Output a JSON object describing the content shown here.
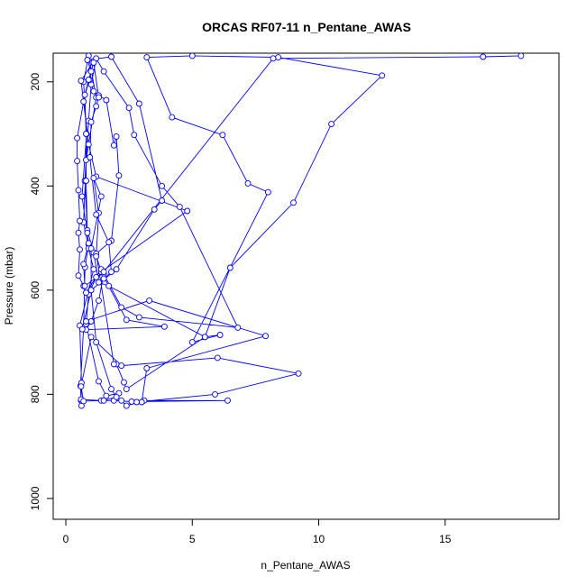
{
  "chart_data": {
    "type": "line",
    "title": "ORCAS RF07-11 n_Pentane_AWAS",
    "xlabel": "n_Pentane_AWAS",
    "ylabel": "Pressure (mbar)",
    "xlim": [
      -0.5,
      19.5
    ],
    "ylim": [
      1040,
      145
    ],
    "y_inverted": true,
    "x_ticks": [
      0,
      5,
      10,
      15
    ],
    "y_ticks": [
      200,
      400,
      600,
      800,
      1000
    ],
    "grid": false,
    "legend": "none",
    "color": "#0000ff",
    "marker": "open-circle",
    "series": [
      {
        "points": [
          [
            0.62,
            822
          ],
          [
            0.6,
            812
          ],
          [
            0.58,
            784
          ],
          [
            0.7,
            672
          ],
          [
            0.76,
            556
          ],
          [
            0.9,
            512
          ],
          [
            0.64,
            420
          ],
          [
            0.82,
            300
          ],
          [
            0.7,
            200
          ],
          [
            0.9,
            150
          ],
          [
            1.2,
            230
          ],
          [
            0.8,
            350
          ],
          [
            0.7,
            470
          ],
          [
            0.9,
            520
          ],
          [
            1.1,
            560
          ],
          [
            0.55,
            668
          ],
          [
            0.62,
            778
          ],
          [
            0.6,
            810
          ],
          [
            1.4,
            812
          ],
          [
            2.2,
            812
          ],
          [
            2.4,
            822
          ],
          [
            3.1,
            812
          ],
          [
            6.4,
            812
          ],
          [
            2.6,
            814
          ],
          [
            1.9,
            812
          ],
          [
            2.1,
            798
          ],
          [
            1.6,
            803
          ],
          [
            1.3,
            775
          ],
          [
            0.8,
            665
          ],
          [
            0.9,
            608
          ],
          [
            1.2,
            575
          ],
          [
            1.5,
            568
          ],
          [
            1.3,
            620
          ],
          [
            1.0,
            660
          ],
          [
            0.8,
            676
          ],
          [
            3.9,
            670
          ],
          [
            2.4,
            657
          ],
          [
            1.4,
            565
          ],
          [
            4.8,
            448
          ],
          [
            1.2,
            382
          ],
          [
            0.9,
            320
          ],
          [
            0.6,
            198
          ],
          [
            1.1,
            160
          ],
          [
            0.7,
            238
          ],
          [
            0.45,
            308
          ],
          [
            0.45,
            352
          ],
          [
            0.5,
            408
          ],
          [
            0.55,
            467
          ],
          [
            0.5,
            490
          ],
          [
            0.55,
            522
          ],
          [
            0.5,
            572
          ],
          [
            0.7,
            592
          ],
          [
            0.8,
            605
          ],
          [
            1.4,
            560
          ],
          [
            2.2,
            633
          ],
          [
            2.9,
            652
          ],
          [
            6.8,
            672
          ],
          [
            4.5,
            440
          ],
          [
            3.8,
            400
          ],
          [
            2.7,
            302
          ],
          [
            2.5,
            250
          ],
          [
            1.5,
            180
          ],
          [
            1.2,
            155
          ],
          [
            1.0,
            205
          ],
          [
            0.9,
            275
          ],
          [
            0.75,
            390
          ],
          [
            0.85,
            485
          ],
          [
            1.1,
            528
          ],
          [
            1.3,
            585
          ],
          [
            1.7,
            592
          ],
          [
            5.5,
            690
          ],
          [
            6.1,
            686
          ],
          [
            5.0,
            700
          ],
          [
            8.0,
            412
          ],
          [
            7.2,
            395
          ],
          [
            6.2,
            302
          ],
          [
            4.2,
            268
          ],
          [
            3.2,
            153
          ],
          [
            5.0,
            150
          ],
          [
            8.4,
            153
          ],
          [
            12.5,
            188
          ],
          [
            10.5,
            281
          ],
          [
            9.0,
            432
          ],
          [
            6.5,
            557
          ],
          [
            5.5,
            690
          ],
          [
            2.4,
            790
          ],
          [
            2.3,
            777
          ],
          [
            2.0,
            742
          ],
          [
            1.9,
            742
          ],
          [
            1.2,
            530
          ],
          [
            1.8,
            505
          ],
          [
            2.1,
            380
          ],
          [
            2.0,
            305
          ],
          [
            1.9,
            322
          ],
          [
            1.6,
            235
          ],
          [
            1.3,
            226
          ],
          [
            1.1,
            218
          ],
          [
            0.95,
            196
          ],
          [
            1.0,
            180
          ],
          [
            0.85,
            158
          ],
          [
            1.8,
            152
          ],
          [
            2.9,
            242
          ],
          [
            3.8,
            428
          ],
          [
            3.5,
            445
          ],
          [
            2.0,
            560
          ],
          [
            1.0,
            600
          ],
          [
            0.65,
            675
          ],
          [
            0.8,
            660
          ],
          [
            3.3,
            620
          ],
          [
            7.9,
            688
          ],
          [
            3.2,
            750
          ],
          [
            3.0,
            815
          ],
          [
            2.8,
            815
          ],
          [
            5.9,
            800
          ],
          [
            9.2,
            760
          ],
          [
            6.0,
            730
          ],
          [
            2.2,
            745
          ],
          [
            1.0,
            690
          ],
          [
            0.6,
            785
          ],
          [
            0.7,
            813
          ],
          [
            1.5,
            812
          ],
          [
            2.0,
            805
          ],
          [
            1.8,
            790
          ],
          [
            1.2,
            700
          ],
          [
            1.0,
            600
          ],
          [
            1.0,
            520
          ],
          [
            1.4,
            420
          ],
          [
            1.1,
            385
          ],
          [
            1.3,
            452
          ],
          [
            1.2,
            535
          ],
          [
            1.5,
            578
          ],
          [
            1.8,
            565
          ],
          [
            1.7,
            508
          ],
          [
            1.2,
            455
          ],
          [
            0.95,
            345
          ],
          [
            1.0,
            277
          ],
          [
            1.2,
            247
          ],
          [
            1.3,
            230
          ],
          [
            1.1,
            163
          ],
          [
            0.9,
            196
          ],
          [
            0.75,
            225
          ],
          [
            0.8,
            300
          ],
          [
            0.8,
            390
          ],
          [
            0.85,
            490
          ],
          [
            0.9,
            510
          ],
          [
            0.7,
            550
          ],
          [
            0.75,
            592
          ],
          [
            1.5,
            565
          ],
          [
            8.2,
            155
          ],
          [
            16.5,
            152
          ],
          [
            18.0,
            150
          ]
        ]
      }
    ]
  }
}
